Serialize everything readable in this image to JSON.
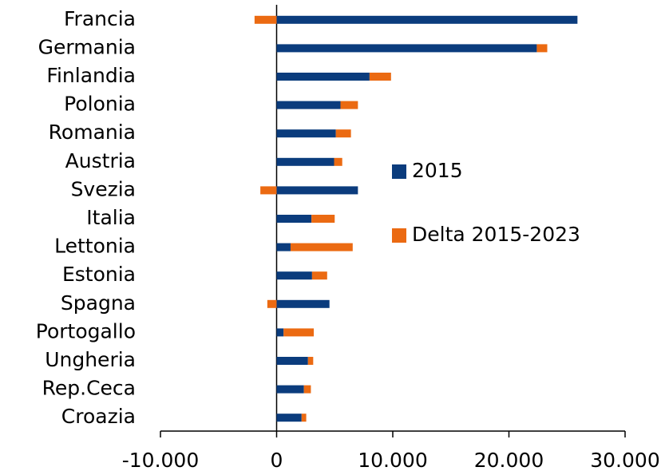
{
  "chart_data": {
    "type": "stacked-barh",
    "categories": [
      "Francia",
      "Germania",
      "Finlandia",
      "Polonia",
      "Romania",
      "Austria",
      "Svezia",
      "Italia",
      "Lettonia",
      "Estonia",
      "Spagna",
      "Portogallo",
      "Ungheria",
      "Rep.Ceca",
      "Croazia"
    ],
    "series": [
      {
        "name": "2015",
        "color": "#0b3c7d",
        "values": [
          25900,
          22400,
          8000,
          5500,
          5100,
          4950,
          7000,
          3000,
          1200,
          3050,
          4550,
          600,
          2700,
          2350,
          2150
        ]
      },
      {
        "name": "Delta 2015-2023",
        "color": "#eb6a12",
        "values": [
          -1900,
          900,
          1850,
          1500,
          1300,
          700,
          -1400,
          2000,
          5350,
          1300,
          -800,
          2600,
          450,
          600,
          400
        ]
      }
    ],
    "xlim": [
      -10000,
      30000
    ],
    "xticks": [
      {
        "value": -10000,
        "label": "-10.000"
      },
      0,
      {
        "value": 10000,
        "label": "10.000"
      },
      {
        "value": 20000,
        "label": "20.000"
      },
      {
        "value": 30000,
        "label": "30.000"
      }
    ],
    "legend": "right",
    "grid": false
  }
}
